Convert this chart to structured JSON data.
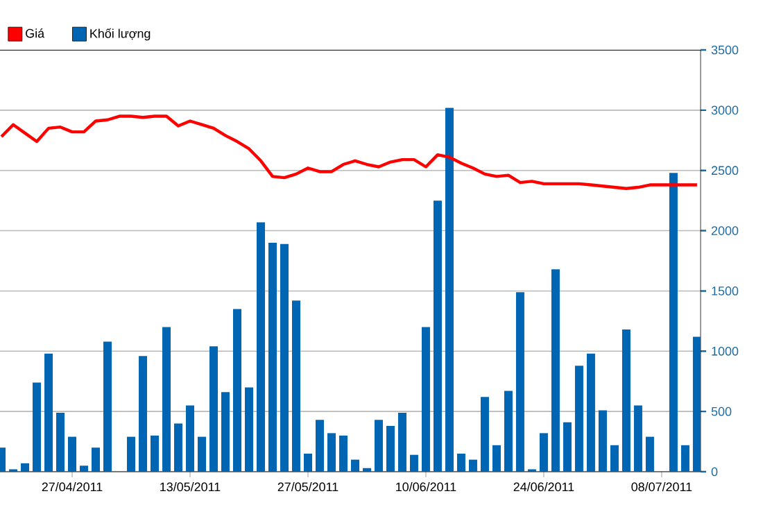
{
  "chart_data": {
    "type": "bar",
    "categories": [
      null,
      null,
      null,
      null,
      null,
      null,
      "27/04/2011",
      null,
      null,
      null,
      null,
      null,
      null,
      null,
      null,
      null,
      "13/05/2011",
      null,
      null,
      null,
      null,
      null,
      null,
      null,
      null,
      null,
      "27/05/2011",
      null,
      null,
      null,
      null,
      null,
      null,
      null,
      null,
      null,
      "10/06/2011",
      null,
      null,
      null,
      null,
      null,
      null,
      null,
      null,
      null,
      "24/06/2011",
      null,
      null,
      null,
      null,
      null,
      null,
      null,
      null,
      null,
      "08/07/2011",
      null,
      null,
      null
    ],
    "series": [
      {
        "name": "Giá",
        "type": "line",
        "color": "#ff0000",
        "values": [
          2780,
          2880,
          2810,
          2740,
          2850,
          2860,
          2820,
          2820,
          2910,
          2920,
          2950,
          2950,
          2940,
          2950,
          2950,
          2870,
          2910,
          2880,
          2850,
          2790,
          2740,
          2680,
          2580,
          2450,
          2440,
          2470,
          2520,
          2490,
          2490,
          2550,
          2580,
          2550,
          2530,
          2570,
          2590,
          2590,
          2530,
          2630,
          2610,
          2560,
          2520,
          2470,
          2450,
          2460,
          2400,
          2410,
          2390,
          2390,
          2390,
          2390,
          2380,
          2370,
          2360,
          2350,
          2360,
          2380,
          2380,
          2380,
          2380,
          2380
        ]
      },
      {
        "name": "Khối lượng",
        "color": "#0066b3",
        "values": [
          200,
          20,
          70,
          740,
          980,
          490,
          290,
          50,
          200,
          1080,
          null,
          290,
          960,
          300,
          1200,
          400,
          550,
          290,
          1040,
          660,
          1350,
          700,
          2070,
          1900,
          1890,
          1420,
          150,
          430,
          320,
          300,
          100,
          30,
          430,
          380,
          490,
          140,
          1200,
          2250,
          3020,
          150,
          100,
          620,
          220,
          670,
          1490,
          20,
          320,
          1680,
          410,
          880,
          980,
          510,
          220,
          1180,
          550,
          290,
          null,
          2480,
          220,
          1120
        ]
      }
    ],
    "ylim": [
      0,
      3500
    ],
    "yticks": [
      0,
      500,
      1000,
      1500,
      2000,
      2500,
      3000,
      3500
    ],
    "grid": true,
    "legend": "top left",
    "marker": "none",
    "line_style": "solid"
  }
}
